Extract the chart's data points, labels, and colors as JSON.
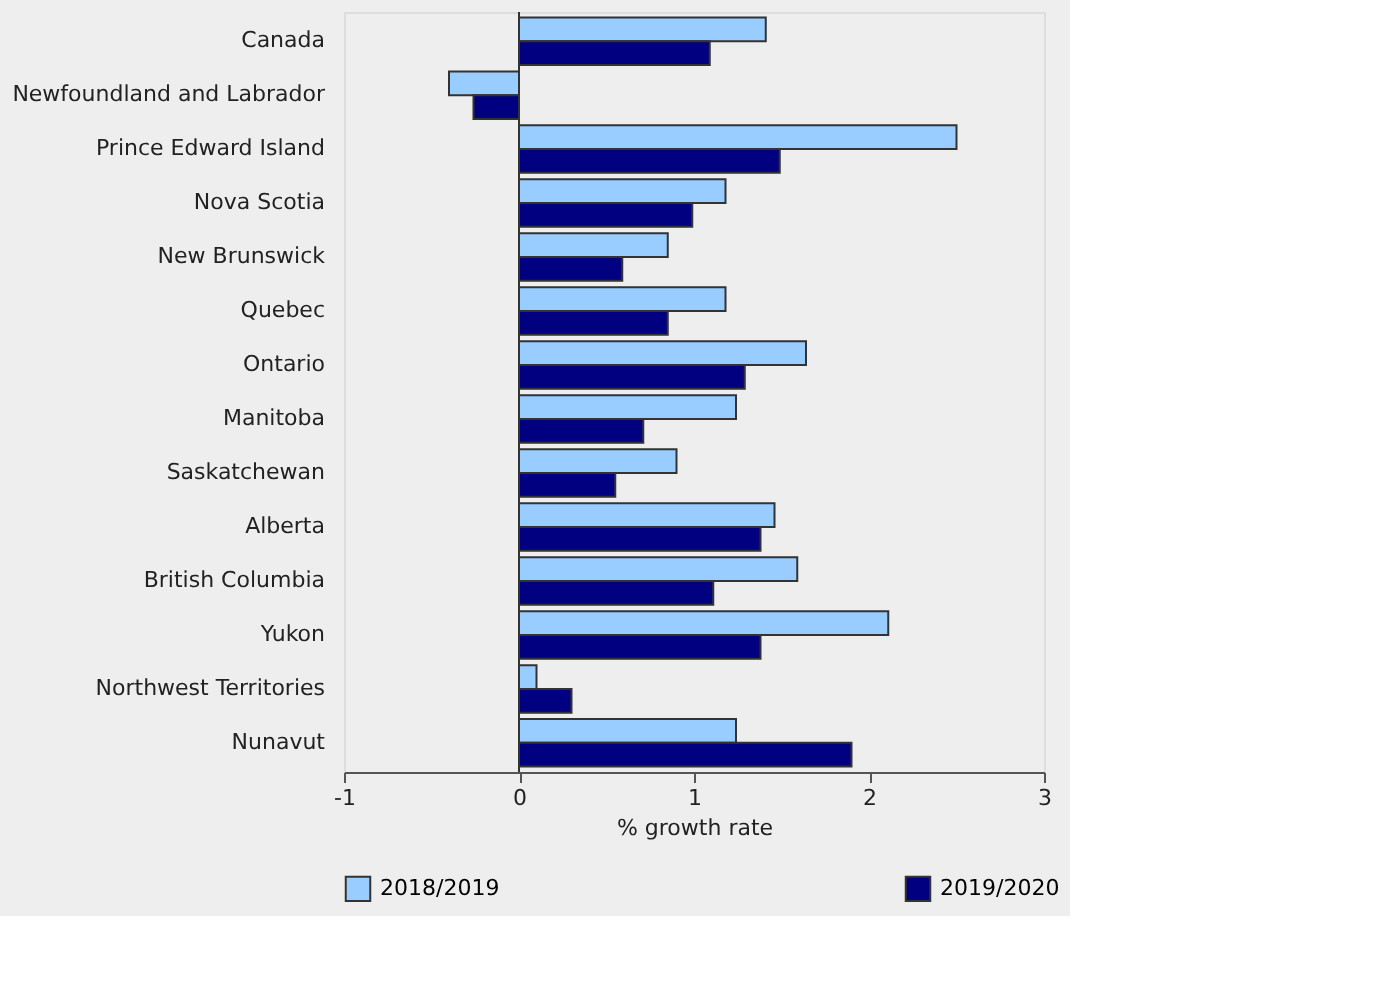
{
  "chart_data": {
    "type": "bar",
    "orientation": "horizontal",
    "xlabel": "% growth rate",
    "categories": [
      "Canada",
      "Newfoundland and Labrador",
      "Prince Edward Island",
      "Nova Scotia",
      "New Brunswick",
      "Quebec",
      "Ontario",
      "Manitoba",
      "Saskatchewan",
      "Alberta",
      "British Columbia",
      "Yukon",
      "Northwest Territories",
      "Nunavut"
    ],
    "series": [
      {
        "name": "2018/2019",
        "color": "#99ccff",
        "values": [
          1.41,
          -0.4,
          2.5,
          1.18,
          0.85,
          1.18,
          1.64,
          1.24,
          0.9,
          1.46,
          1.59,
          2.11,
          0.1,
          1.24
        ]
      },
      {
        "name": "2019/2020",
        "color": "#000080",
        "values": [
          1.09,
          -0.26,
          1.49,
          0.99,
          0.59,
          0.85,
          1.29,
          0.71,
          0.55,
          1.38,
          1.11,
          1.38,
          0.3,
          1.9
        ]
      }
    ],
    "xlim": [
      -1,
      3
    ],
    "xticks": [
      -1,
      0,
      1,
      2,
      3
    ],
    "grid": false,
    "legend": "bottom",
    "ref_lines": [
      {
        "axis": "x",
        "value": 0,
        "color": "#333333"
      }
    ]
  }
}
